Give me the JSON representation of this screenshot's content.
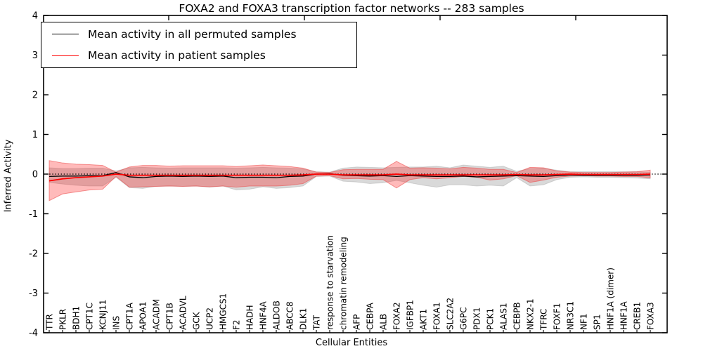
{
  "figure": {
    "title": "FOXA2 and FOXA3 transcription factor networks -- 283 samples",
    "xlabel": "Cellular Entities",
    "ylabel": "Inferred Activity"
  },
  "legend": {
    "entries": [
      {
        "label": "Mean activity in all permuted samples",
        "color": "#000000"
      },
      {
        "label": "Mean activity in patient samples",
        "color": "#ff0000"
      }
    ],
    "position": "upper left"
  },
  "chart_data": {
    "type": "line",
    "title": "FOXA2 and FOXA3 transcription factor networks -- 283 samples",
    "xlabel": "Cellular Entities",
    "ylabel": "Inferred Activity",
    "ylim": [
      -4,
      4
    ],
    "yticks": [
      4,
      3,
      2,
      1,
      0,
      -1,
      -2,
      -3,
      -4
    ],
    "ytick_labels": [
      "4",
      "3",
      "2",
      "1",
      "0",
      "-1",
      "-2",
      "-3",
      "-4"
    ],
    "grid": false,
    "zero_line": {
      "value": 0,
      "style": "dotted",
      "color": "#000000"
    },
    "legend_position": "upper left",
    "categories": [
      "TTR",
      "PKLR",
      "BDH1",
      "CPT1C",
      "KCNJ11",
      "INS",
      "CPT1A",
      "APOA1",
      "ACADM",
      "CPT1B",
      "ACADVL",
      "GCK",
      "UCP2",
      "HMGCS1",
      "F2",
      "HADH",
      "HNF4A",
      "ALDOB",
      "ABCC8",
      "DLK1",
      "TAT",
      "response to starvation",
      "chromatin remodeling",
      "AFP",
      "CEBPA",
      "ALB",
      "FOXA2",
      "IGFBP1",
      "AKT1",
      "FOXA1",
      "SLC2A2",
      "G6PC",
      "PDX1",
      "PCK1",
      "ALAS1",
      "CEBPB",
      "NKX2-1",
      "TFRC",
      "FOXF1",
      "NR3C1",
      "NF1",
      "SP1",
      "HNF1A (dimer)",
      "HNF1A",
      "CREB1",
      "FOXA3"
    ],
    "series": [
      {
        "name": "Mean activity in all permuted samples",
        "color": "#000000",
        "values": [
          -0.06,
          -0.05,
          -0.05,
          -0.04,
          -0.04,
          0.04,
          -0.07,
          -0.09,
          -0.06,
          -0.05,
          -0.06,
          -0.05,
          -0.06,
          -0.05,
          -0.09,
          -0.08,
          -0.08,
          -0.09,
          -0.06,
          -0.05,
          0.0,
          0.01,
          -0.03,
          -0.04,
          -0.05,
          -0.04,
          -0.06,
          -0.04,
          -0.05,
          -0.06,
          -0.06,
          -0.05,
          -0.07,
          -0.06,
          -0.05,
          -0.04,
          -0.05,
          -0.06,
          -0.04,
          -0.02,
          -0.03,
          -0.03,
          -0.03,
          -0.03,
          -0.03,
          -0.02
        ]
      },
      {
        "name": "Mean activity in patient samples",
        "color": "#ff0000",
        "values": [
          -0.17,
          -0.12,
          -0.09,
          -0.07,
          -0.05,
          0.0,
          -0.03,
          -0.03,
          -0.03,
          -0.03,
          -0.03,
          -0.03,
          -0.03,
          -0.03,
          -0.03,
          -0.03,
          -0.03,
          -0.03,
          -0.03,
          -0.02,
          0.0,
          0.0,
          -0.02,
          -0.02,
          -0.02,
          -0.02,
          0.0,
          -0.02,
          -0.02,
          -0.02,
          -0.02,
          -0.02,
          -0.02,
          -0.02,
          -0.02,
          -0.01,
          -0.02,
          -0.02,
          -0.01,
          0.0,
          -0.01,
          -0.01,
          -0.01,
          -0.01,
          -0.01,
          0.0
        ]
      }
    ],
    "bands": [
      {
        "name": "permuted-samples-std-band",
        "color": "rgba(128,128,128,0.30)",
        "edge": "rgba(120,120,120,0.25)",
        "upper": [
          0.16,
          0.14,
          0.14,
          0.15,
          0.15,
          0.08,
          0.16,
          0.17,
          0.16,
          0.15,
          0.16,
          0.16,
          0.16,
          0.16,
          0.15,
          0.16,
          0.17,
          0.16,
          0.15,
          0.13,
          0.06,
          0.05,
          0.15,
          0.18,
          0.17,
          0.16,
          0.17,
          0.18,
          0.18,
          0.2,
          0.16,
          0.23,
          0.2,
          0.17,
          0.2,
          0.07,
          0.14,
          0.15,
          0.1,
          0.06,
          0.06,
          0.06,
          0.06,
          0.06,
          0.06,
          0.05
        ],
        "lower": [
          -0.21,
          -0.25,
          -0.28,
          -0.3,
          -0.3,
          -0.08,
          -0.34,
          -0.36,
          -0.31,
          -0.3,
          -0.31,
          -0.3,
          -0.33,
          -0.3,
          -0.4,
          -0.38,
          -0.32,
          -0.36,
          -0.34,
          -0.3,
          -0.06,
          -0.05,
          -0.18,
          -0.2,
          -0.24,
          -0.22,
          -0.16,
          -0.22,
          -0.28,
          -0.33,
          -0.27,
          -0.27,
          -0.3,
          -0.28,
          -0.3,
          -0.09,
          -0.3,
          -0.27,
          -0.14,
          -0.08,
          -0.07,
          -0.08,
          -0.08,
          -0.09,
          -0.1,
          -0.12
        ]
      },
      {
        "name": "patient-samples-std-band",
        "color": "rgba(255,0,0,0.27)",
        "edge": "rgba(235,70,70,0.55)",
        "upper": [
          0.34,
          0.28,
          0.25,
          0.24,
          0.22,
          0.05,
          0.18,
          0.22,
          0.22,
          0.2,
          0.21,
          0.21,
          0.21,
          0.21,
          0.19,
          0.21,
          0.23,
          0.21,
          0.19,
          0.15,
          0.05,
          0.04,
          0.11,
          0.12,
          0.12,
          0.12,
          0.32,
          0.15,
          0.16,
          0.15,
          0.13,
          0.17,
          0.15,
          0.12,
          0.12,
          0.04,
          0.17,
          0.16,
          0.08,
          0.05,
          0.04,
          0.04,
          0.04,
          0.05,
          0.06,
          0.1
        ],
        "lower": [
          -0.67,
          -0.5,
          -0.45,
          -0.4,
          -0.38,
          -0.06,
          -0.33,
          -0.32,
          -0.31,
          -0.3,
          -0.31,
          -0.3,
          -0.32,
          -0.3,
          -0.33,
          -0.3,
          -0.3,
          -0.3,
          -0.28,
          -0.24,
          -0.05,
          -0.04,
          -0.12,
          -0.11,
          -0.13,
          -0.14,
          -0.35,
          -0.14,
          -0.09,
          -0.12,
          -0.09,
          -0.06,
          -0.08,
          -0.15,
          -0.12,
          -0.04,
          -0.21,
          -0.15,
          -0.08,
          -0.05,
          -0.04,
          -0.05,
          -0.05,
          -0.06,
          -0.06,
          -0.09
        ]
      }
    ]
  }
}
